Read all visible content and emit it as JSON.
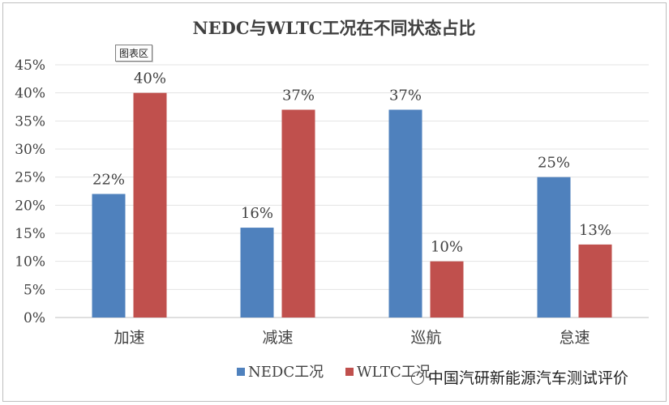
{
  "chart_area_tag": "图表区",
  "watermark": {
    "icon": "wechat-icon",
    "text": "中国汽研新能源汽车测试评价"
  },
  "chart_data": {
    "type": "bar",
    "title": "NEDC与WLTC工况在不同状态占比",
    "categories": [
      "加速",
      "减速",
      "巡航",
      "怠速"
    ],
    "series": [
      {
        "name": "NEDC工况",
        "color": "#4f81bd",
        "values": [
          22,
          16,
          37,
          25
        ],
        "labels": [
          "22%",
          "16%",
          "37%",
          "25%"
        ]
      },
      {
        "name": "WLTC工况",
        "color": "#c0504d",
        "values": [
          40,
          37,
          10,
          13
        ],
        "labels": [
          "40%",
          "37%",
          "10%",
          "13%"
        ]
      }
    ],
    "ylim": [
      0,
      45
    ],
    "yticks": [
      "0%",
      "5%",
      "10%",
      "15%",
      "20%",
      "25%",
      "30%",
      "35%",
      "40%",
      "45%"
    ],
    "grid": true,
    "legend": "bottom-center"
  }
}
